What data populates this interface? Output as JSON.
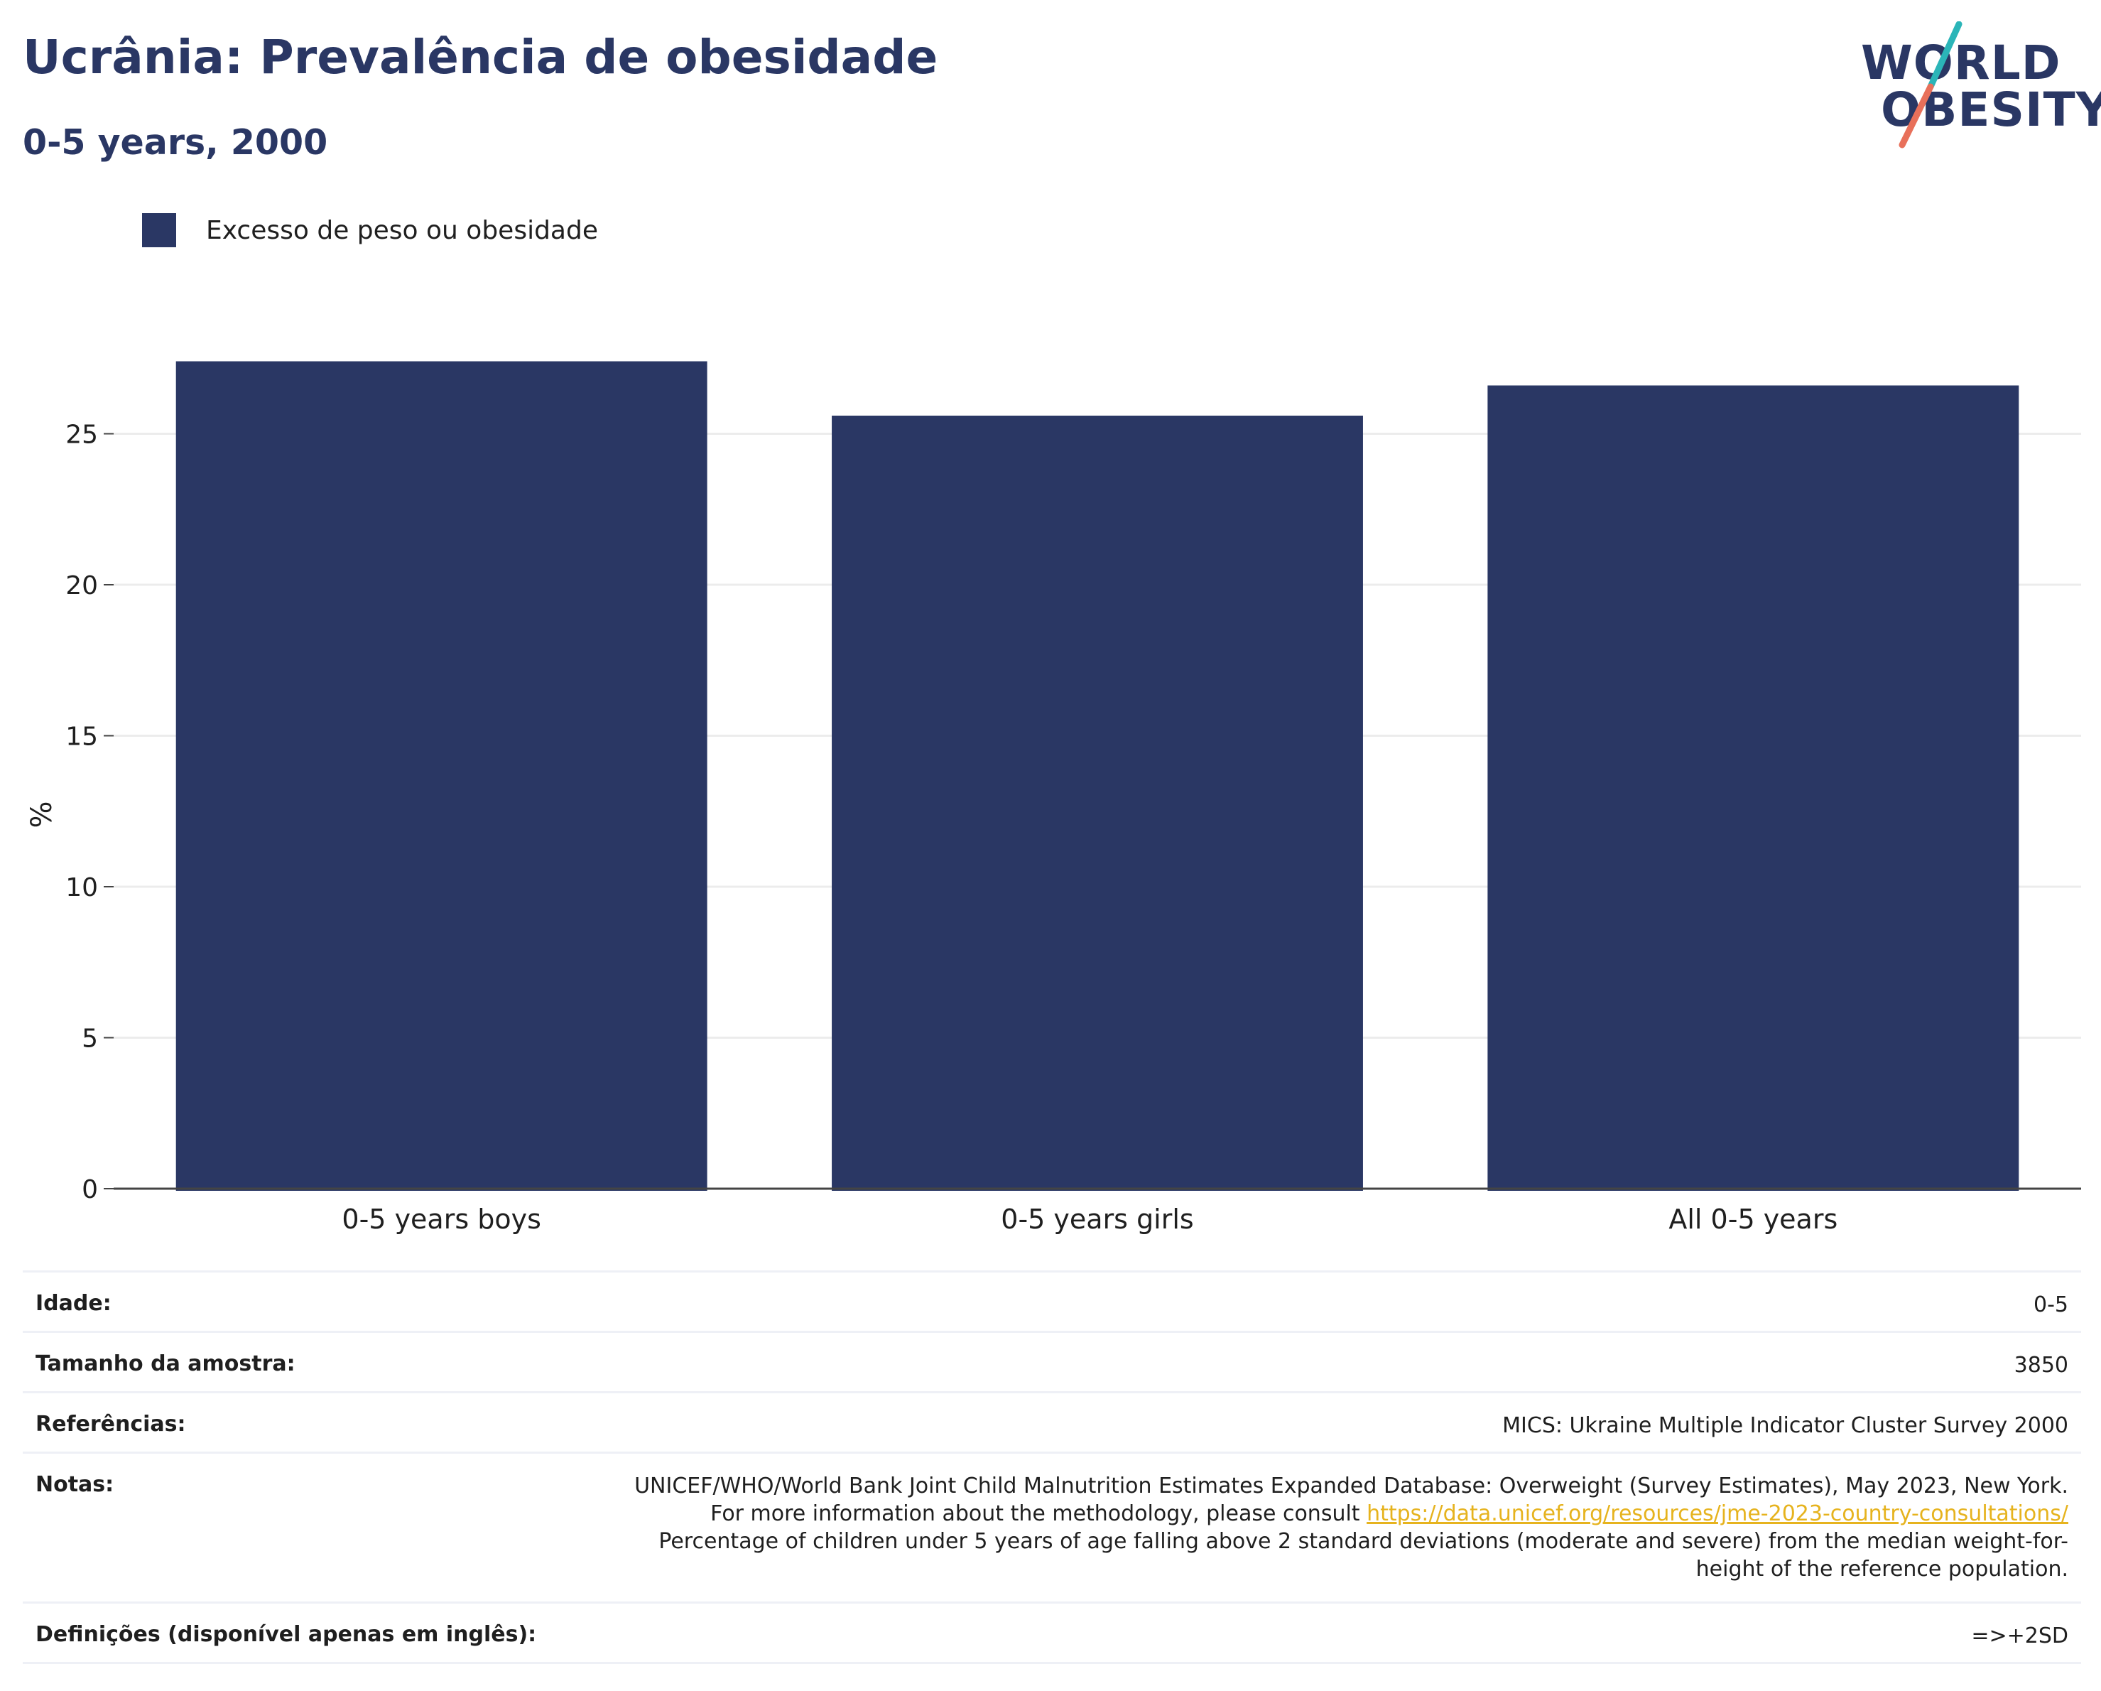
{
  "header": {
    "title": "Ucrânia: Prevalência de obesidade",
    "subtitle": "0-5 years, 2000"
  },
  "logo": {
    "line1": "WORLD",
    "line2": "OBESITY",
    "colors": {
      "text": "#2a3764",
      "slash_top": "#2bb5b8",
      "slash_bottom": "#e8705a"
    }
  },
  "legend": {
    "label": "Excesso de peso ou obesidade",
    "color": "#2a3764"
  },
  "chart_data": {
    "type": "bar",
    "categories": [
      "0-5 years boys",
      "0-5 years girls",
      "All 0-5 years"
    ],
    "series": [
      {
        "name": "Excesso de peso ou obesidade",
        "values": [
          27.4,
          25.6,
          26.6
        ],
        "color": "#2a3764"
      }
    ],
    "ylabel": "%",
    "ylim": [
      0,
      27.6
    ],
    "yticks": [
      0,
      5,
      10,
      15,
      20,
      25
    ],
    "grid": true,
    "legend_position": "top-left"
  },
  "info": {
    "rows": [
      {
        "label": "Idade:",
        "value": "0-5"
      },
      {
        "label": "Tamanho da amostra:",
        "value": "3850"
      },
      {
        "label": "Referências:",
        "value": "MICS: Ukraine Multiple Indicator Cluster Survey 2000"
      }
    ],
    "notes": {
      "label": "Notas:",
      "text_before": "UNICEF/WHO/World Bank Joint Child Malnutrition Estimates Expanded Database: Overweight (Survey Estimates), May 2023, New York. For more information about the methodology, please consult ",
      "link": "https://data.unicef.org/resources/jme-2023-country-consultations/",
      "text_after": "Percentage of children under 5 years of age falling above 2 standard deviations (moderate and severe) from the median weight-for-height of the reference population."
    },
    "definitions": {
      "label": "Definições (disponível apenas em inglês):",
      "value": "=>+2SD"
    }
  }
}
